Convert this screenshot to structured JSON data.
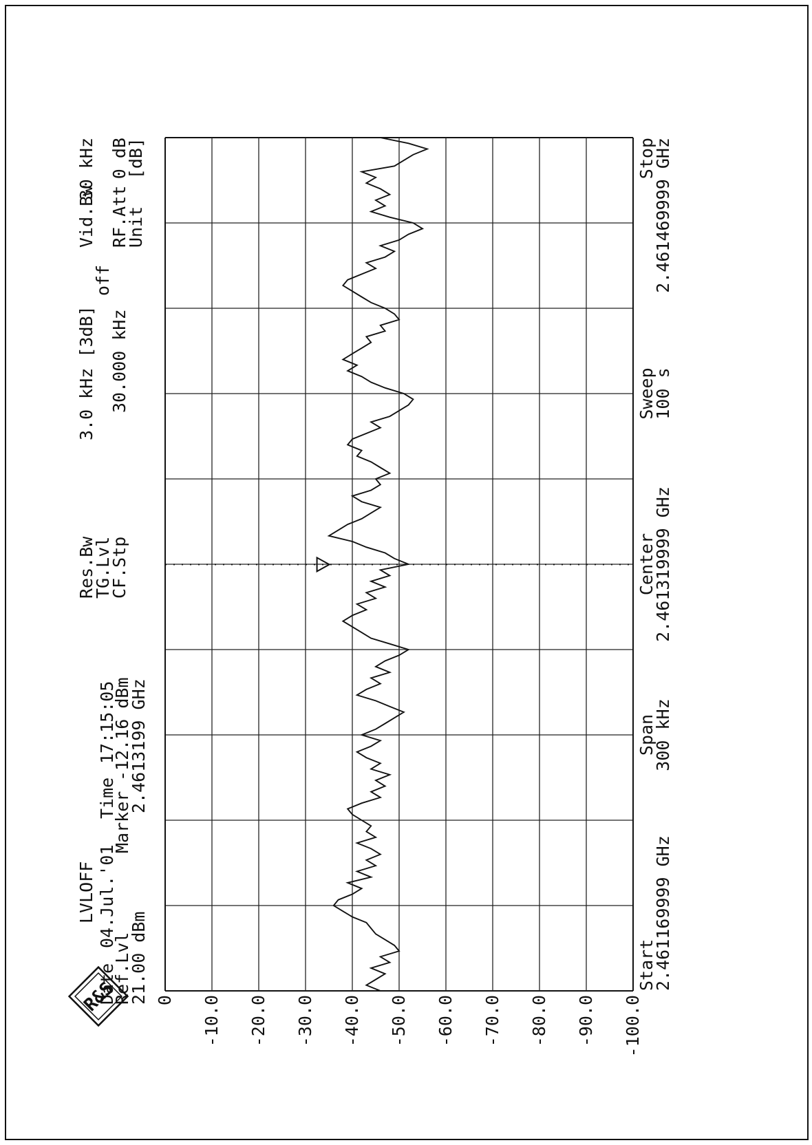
{
  "instrument": {
    "colors": {
      "ink": "#111111",
      "paper": "#ffffff"
    },
    "logo": {
      "icon": "rohde-schwarz-logo-icon",
      "text": "R&S"
    }
  },
  "header": {
    "trace_name": "LVLOFF",
    "date_label": "Date",
    "date_value": "04.Jul.'01",
    "time_label": "Time",
    "time_value": "17:15:05",
    "ref_lvl_label": "Ref.Lvl",
    "ref_lvl_value": "21.00 dBm",
    "marker_label": "Marker",
    "marker_level": "-12.16 dBm",
    "marker_freq": "2.4613199 GHz",
    "res_bw_label": "Res.Bw",
    "res_bw_value": "3.0 kHz [3dB]",
    "tg_lvl_label": "TG.Lvl",
    "tg_lvl_value": "off",
    "cf_stp_label": "CF.Stp",
    "cf_stp_value": "30.000 kHz",
    "vid_bw_label": "Vid.Bw",
    "vid_bw_value": "30 kHz",
    "rf_att_label": "RF.Att",
    "rf_att_value": "0 dB",
    "unit_label": "Unit",
    "unit_value": "[dB]"
  },
  "footer": {
    "start_label": "Start",
    "start_value": "2.461169999 GHz",
    "span_label": "Span",
    "span_value": "300 kHz",
    "center_label": "Center",
    "center_value": "2.461319999 GHz",
    "sweep_label": "Sweep",
    "sweep_value": "100 s",
    "stop_label": "Stop",
    "stop_value": "2.461469999 GHz"
  },
  "chart_data": {
    "type": "line",
    "orientation": "rotated 90° counter-clockwise",
    "title": "",
    "xlabel": "",
    "ylabel": "",
    "xlim": [
      2.461169999,
      2.461469999
    ],
    "x_unit": "GHz",
    "ylim": [
      -100,
      0
    ],
    "y_unit": "dB",
    "grid": true,
    "x_divisions": 10,
    "y_divisions": 10,
    "y_tick_labels": [
      "0",
      "-10.0",
      "-20.0",
      "-30.0",
      "-40.0",
      "-50.0",
      "-60.0",
      "-70.0",
      "-80.0",
      "-90.0",
      "-100.0"
    ],
    "marker": {
      "x": 2.4613199,
      "y": -34.5,
      "type": "triangle"
    },
    "series": [
      {
        "x": [
          2.46117,
          2.461172,
          2.461174,
          2.461176,
          2.461178,
          2.46118,
          2.461182,
          2.461184,
          2.461186,
          2.461188,
          2.46119,
          2.461192,
          2.461194,
          2.461196,
          2.461198,
          2.4612,
          2.461202,
          2.461204,
          2.461206,
          2.461208,
          2.46121,
          2.461212,
          2.461214,
          2.461216,
          2.461218,
          2.46122,
          2.461222,
          2.461224,
          2.461226,
          2.461228,
          2.46123,
          2.461232,
          2.461234,
          2.461236,
          2.461238,
          2.46124,
          2.461242,
          2.461244,
          2.461246,
          2.461248,
          2.46125,
          2.461252,
          2.461254,
          2.461256,
          2.461258,
          2.46126,
          2.461262,
          2.461264,
          2.461266,
          2.461268,
          2.46127,
          2.461272,
          2.461274,
          2.461276,
          2.461278,
          2.46128,
          2.461282,
          2.461284,
          2.461286,
          2.461288,
          2.46129,
          2.461292,
          2.461294,
          2.461296,
          2.461298,
          2.4613,
          2.461302,
          2.461304,
          2.461306,
          2.461308,
          2.46131,
          2.461312,
          2.461314,
          2.461316,
          2.461318,
          2.46132,
          2.461322,
          2.461324,
          2.461326,
          2.461328,
          2.46133,
          2.461332,
          2.461334,
          2.461336,
          2.461338,
          2.46134,
          2.461342,
          2.461344,
          2.461346,
          2.461348,
          2.46135,
          2.461352,
          2.461354,
          2.461356,
          2.461358,
          2.46136,
          2.461362,
          2.461364,
          2.461366,
          2.461368,
          2.46137,
          2.461372,
          2.461374,
          2.461376,
          2.461378,
          2.46138,
          2.461382,
          2.461384,
          2.461386,
          2.461388,
          2.46139,
          2.461392,
          2.461394,
          2.461396,
          2.461398,
          2.4614,
          2.461402,
          2.461404,
          2.461406,
          2.461408,
          2.46141,
          2.461412,
          2.461414,
          2.461416,
          2.461418,
          2.46142,
          2.461422,
          2.461424,
          2.461426,
          2.461428,
          2.46143,
          2.461432,
          2.461434,
          2.461436,
          2.461438,
          2.46144,
          2.461442,
          2.461444,
          2.461446,
          2.461448,
          2.46145,
          2.461452,
          2.461454,
          2.461456,
          2.461458,
          2.46146,
          2.461462,
          2.461464,
          2.461466,
          2.461468,
          2.46147
        ],
        "values": [
          -46,
          -43,
          -45,
          -47,
          -44,
          -48,
          -46,
          -50,
          -49,
          -47,
          -45,
          -44,
          -43,
          -40,
          -38,
          -36,
          -37,
          -40,
          -42,
          -39,
          -44,
          -41,
          -45,
          -43,
          -46,
          -44,
          -41,
          -45,
          -43,
          -44,
          -42,
          -40,
          -39,
          -42,
          -46,
          -44,
          -47,
          -45,
          -48,
          -44,
          -46,
          -43,
          -41,
          -44,
          -46,
          -42,
          -45,
          -47,
          -49,
          -51,
          -48,
          -45,
          -41,
          -43,
          -46,
          -44,
          -48,
          -45,
          -47,
          -50,
          -52,
          -48,
          -44,
          -42,
          -40,
          -38,
          -40,
          -43,
          -41,
          -45,
          -43,
          -47,
          -44,
          -48,
          -46,
          -52,
          -49,
          -47,
          -43,
          -40,
          -35,
          -37,
          -39,
          -42,
          -44,
          -46,
          -42,
          -40,
          -44,
          -46,
          -45,
          -48,
          -46,
          -44,
          -41,
          -42,
          -39,
          -40,
          -43,
          -46,
          -44,
          -48,
          -50,
          -52,
          -53,
          -51,
          -47,
          -44,
          -42,
          -39,
          -41,
          -38,
          -40,
          -42,
          -44,
          -43,
          -47,
          -46,
          -50,
          -49,
          -47,
          -44,
          -42,
          -40,
          -38,
          -39,
          -42,
          -45,
          -43,
          -47,
          -49,
          -46,
          -50,
          -52,
          -55,
          -53,
          -48,
          -44,
          -47,
          -45,
          -48,
          -46,
          -43,
          -45,
          -42,
          -49,
          -51,
          -53,
          -56,
          -52,
          -46
        ]
      }
    ]
  }
}
